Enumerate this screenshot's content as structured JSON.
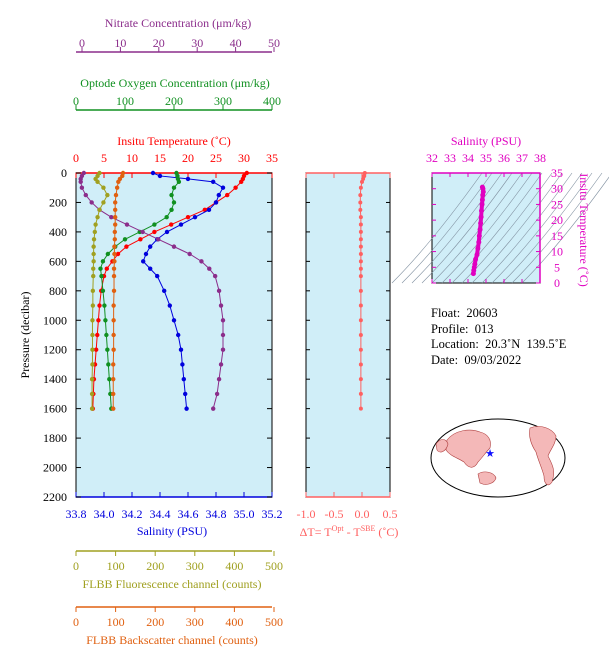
{
  "colors": {
    "nitrate": "#8b2d8b",
    "oxygen": "#109020",
    "temperature": "#ff0000",
    "salinity": "#0000dd",
    "fluorescence": "#a0a020",
    "backscatter": "#e06010",
    "delta_t": "#ff6060",
    "ts_axis": "#e000c0",
    "panel_bg": "#d0eef8"
  },
  "axes": {
    "nitrate": {
      "label": "Nitrate Concentration (μm/kg)",
      "ticks": [
        "0",
        "10",
        "20",
        "30",
        "40",
        "50"
      ]
    },
    "oxygen": {
      "label": "Optode Oxygen Concentration (μm/kg)",
      "ticks": [
        "0",
        "100",
        "200",
        "300",
        "400"
      ]
    },
    "temperature": {
      "label": "Insitu Temperature (˚C)",
      "ticks": [
        "0",
        "5",
        "10",
        "15",
        "20",
        "25",
        "30",
        "35"
      ]
    },
    "salinity": {
      "label": "Salinity (PSU)",
      "ticks": [
        "33.8",
        "34.0",
        "34.2",
        "34.4",
        "34.6",
        "34.8",
        "35.0",
        "35.2"
      ]
    },
    "pressure": {
      "label": "Pressure (decibar)",
      "ticks": [
        "0",
        "200",
        "400",
        "600",
        "800",
        "1000",
        "1200",
        "1400",
        "1600",
        "1800",
        "2000",
        "2200"
      ]
    },
    "delta_t": {
      "label": "ΔT= T",
      "sup1": "Opt",
      "mid": " - T",
      "sup2": "SBE",
      "unit": " (˚C)",
      "ticks": [
        "-1.0",
        "-0.5",
        "0.0",
        "0.5"
      ]
    },
    "fluorescence": {
      "label": "FLBB Fluorescence channel (counts)",
      "ticks": [
        "0",
        "100",
        "200",
        "300",
        "400",
        "500"
      ]
    },
    "backscatter": {
      "label": "FLBB Backscatter channel (counts)",
      "ticks": [
        "0",
        "100",
        "200",
        "300",
        "400",
        "500"
      ]
    },
    "ts_salinity": {
      "label": "Salinity (PSU)",
      "ticks": [
        "32",
        "33",
        "34",
        "35",
        "36",
        "37",
        "38"
      ]
    },
    "ts_temperature": {
      "label": "Insitu Temperature (˚C)",
      "ticks": [
        "0",
        "5",
        "10",
        "15",
        "20",
        "25",
        "30",
        "35"
      ]
    }
  },
  "info": {
    "float": "Float:  20603",
    "profile": "Profile:  013",
    "location": "Location:  20.3˚N  139.5˚E",
    "date": "Date:  09/03/2022"
  },
  "chart_data": [
    {
      "type": "line",
      "panel": "profiles",
      "y_name": "pressure",
      "ylim": [
        2200,
        0
      ],
      "series": [
        {
          "name": "Insitu Temperature",
          "xlim": [
            0,
            35
          ],
          "x": [
            30.5,
            30,
            29.8,
            29.5,
            28.5,
            27,
            25,
            23,
            20,
            17,
            14,
            11.5,
            9,
            7.5,
            6.5,
            5.5,
            5,
            4.5,
            4.2,
            4,
            3.8,
            3.6,
            3.4,
            3.2,
            3.1,
            3
          ],
          "y": [
            0,
            20,
            40,
            60,
            100,
            150,
            200,
            250,
            300,
            350,
            400,
            450,
            500,
            550,
            600,
            650,
            700,
            800,
            900,
            1000,
            1100,
            1200,
            1300,
            1400,
            1500,
            1600
          ]
        },
        {
          "name": "Salinity",
          "xlim": [
            33.8,
            35.2
          ],
          "x": [
            34.35,
            34.4,
            34.6,
            34.78,
            34.85,
            34.82,
            34.8,
            34.75,
            34.65,
            34.55,
            34.45,
            34.38,
            34.33,
            34.3,
            34.28,
            34.33,
            34.38,
            34.43,
            34.47,
            34.5,
            34.53,
            34.55,
            34.56,
            34.57,
            34.58,
            34.59
          ],
          "y": [
            0,
            20,
            40,
            60,
            100,
            150,
            200,
            250,
            300,
            350,
            400,
            450,
            500,
            550,
            600,
            650,
            700,
            800,
            900,
            1000,
            1100,
            1200,
            1300,
            1400,
            1500,
            1600
          ]
        },
        {
          "name": "Optode Oxygen Concentration",
          "xlim": [
            0,
            400
          ],
          "x": [
            205,
            207,
            208,
            210,
            200,
            195,
            200,
            195,
            185,
            160,
            130,
            100,
            80,
            65,
            55,
            50,
            52,
            55,
            58,
            60,
            62,
            64,
            66,
            68,
            70,
            72
          ],
          "y": [
            0,
            20,
            40,
            60,
            100,
            150,
            200,
            250,
            300,
            350,
            400,
            450,
            500,
            550,
            600,
            650,
            700,
            800,
            900,
            1000,
            1100,
            1200,
            1300,
            1400,
            1500,
            1600
          ]
        },
        {
          "name": "Nitrate Concentration",
          "xlim": [
            0,
            50
          ],
          "x": [
            2,
            1.5,
            1.2,
            1.2,
            1.5,
            2.5,
            4,
            6,
            9,
            13,
            17,
            21,
            25,
            29,
            32,
            34,
            35.5,
            36.5,
            37,
            37.5,
            37.5,
            37.5,
            37,
            36.5,
            36,
            35
          ],
          "y": [
            0,
            20,
            40,
            60,
            100,
            150,
            200,
            250,
            300,
            350,
            400,
            450,
            500,
            550,
            600,
            650,
            700,
            800,
            900,
            1000,
            1100,
            1200,
            1300,
            1400,
            1500,
            1600
          ]
        },
        {
          "name": "FLBB Fluorescence channel",
          "xlim": [
            0,
            500
          ],
          "x": [
            60,
            55,
            50,
            55,
            70,
            80,
            70,
            60,
            55,
            50,
            48,
            46,
            45,
            45,
            45,
            44,
            44,
            43,
            43,
            42,
            42,
            42,
            42,
            41,
            41,
            41
          ],
          "y": [
            0,
            20,
            40,
            60,
            100,
            150,
            200,
            250,
            300,
            350,
            400,
            450,
            500,
            550,
            600,
            650,
            700,
            800,
            900,
            1000,
            1100,
            1200,
            1300,
            1400,
            1500,
            1600
          ]
        },
        {
          "name": "FLBB Backscatter channel",
          "xlim": [
            0,
            500
          ],
          "x": [
            120,
            118,
            112,
            108,
            105,
            102,
            100,
            100,
            100,
            100,
            99,
            99,
            98,
            98,
            98,
            97,
            97,
            97,
            96,
            96,
            96,
            96,
            95,
            95,
            95,
            95
          ],
          "y": [
            0,
            20,
            40,
            60,
            100,
            150,
            200,
            250,
            300,
            350,
            400,
            450,
            500,
            550,
            600,
            650,
            700,
            800,
            900,
            1000,
            1100,
            1200,
            1300,
            1400,
            1500,
            1600
          ]
        }
      ]
    },
    {
      "type": "line",
      "panel": "delta_t",
      "xlim": [
        -1.0,
        0.5
      ],
      "ylim": [
        2200,
        0
      ],
      "series": [
        {
          "x": [
            0.05,
            0.04,
            0.02,
            0.0,
            -0.02,
            -0.03,
            -0.03,
            -0.03,
            -0.02,
            -0.02,
            -0.02,
            -0.02,
            -0.02,
            -0.02,
            -0.02,
            -0.02,
            -0.02,
            -0.02,
            -0.02,
            -0.02,
            -0.02,
            -0.02,
            -0.02,
            -0.02,
            -0.02,
            -0.02
          ],
          "y": [
            0,
            20,
            40,
            60,
            100,
            150,
            200,
            250,
            300,
            350,
            400,
            450,
            500,
            550,
            600,
            650,
            700,
            800,
            900,
            1000,
            1100,
            1200,
            1300,
            1400,
            1500,
            1600
          ]
        }
      ]
    },
    {
      "type": "line",
      "panel": "ts_diagram",
      "xlim": [
        32,
        38
      ],
      "ylim": [
        0,
        35
      ],
      "series": [
        {
          "x": [
            34.3,
            34.32,
            34.35,
            34.38,
            34.42,
            34.5,
            34.55,
            34.6,
            34.63,
            34.67,
            34.7,
            34.73,
            34.75,
            34.78,
            34.8,
            34.82,
            34.85,
            34.83,
            34.8
          ],
          "y": [
            3,
            4,
            5,
            6,
            7.5,
            9,
            11,
            13,
            15,
            17,
            19,
            21,
            23,
            25,
            26.5,
            28,
            29,
            30,
            30.5
          ]
        }
      ]
    }
  ]
}
